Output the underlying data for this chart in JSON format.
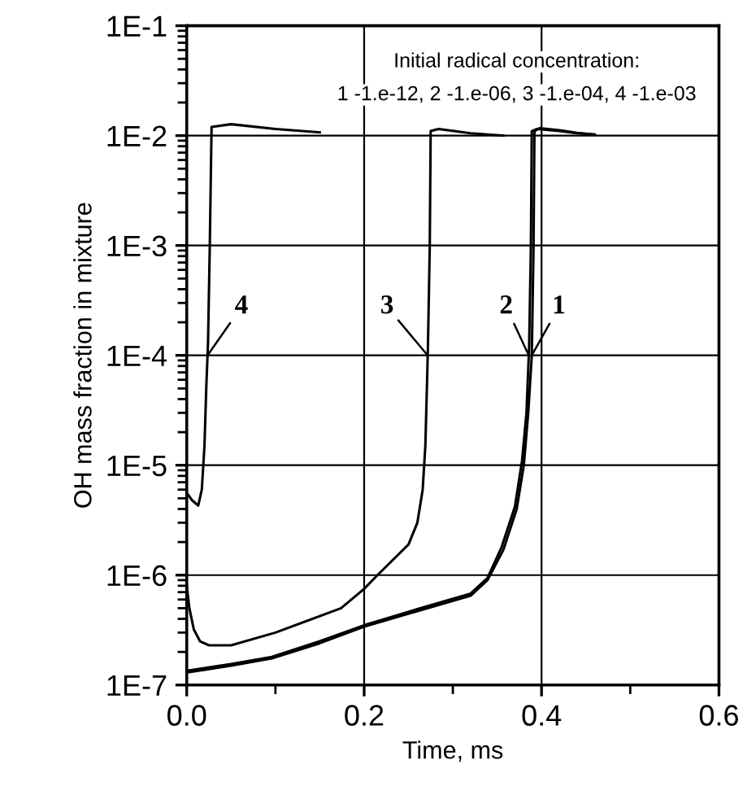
{
  "chart_data": {
    "type": "line",
    "xlabel": "Time, ms",
    "ylabel": "OH mass fraction in mixture",
    "annotations": [
      "Initial radical concentration:",
      "1 -1.e-12, 2 -1.e-06, 3 -1.e-04, 4 -1.e-03"
    ],
    "series": [
      {
        "name": "1",
        "color": "#000000",
        "x": [
          0,
          0.05,
          0.096,
          0.15,
          0.2,
          0.26,
          0.32,
          0.339,
          0.357,
          0.372,
          0.38,
          0.385,
          0.389,
          0.391,
          0.392,
          0.398,
          0.42,
          0.44,
          0.46
        ],
        "values": [
          1.3e-07,
          1.5e-07,
          1.75e-07,
          2.4e-07,
          3.4e-07,
          4.7e-07,
          6.5e-07,
          9e-07,
          1.7e-06,
          4e-06,
          1e-05,
          3e-05,
          0.0001,
          0.001,
          0.011,
          0.0117,
          0.0112,
          0.0106,
          0.0102
        ]
      },
      {
        "name": "2",
        "color": "#000000",
        "x": [
          0,
          0.05,
          0.096,
          0.15,
          0.2,
          0.26,
          0.32,
          0.339,
          0.355,
          0.37,
          0.378,
          0.383,
          0.386,
          0.388,
          0.389,
          0.395,
          0.42,
          0.44,
          0.46
        ],
        "values": [
          1.35e-07,
          1.55e-07,
          1.8e-07,
          2.5e-07,
          3.5e-07,
          4.9e-07,
          6.8e-07,
          9.4e-07,
          1.8e-06,
          4.2e-06,
          1.1e-05,
          3e-05,
          0.00012,
          0.001,
          0.011,
          0.0115,
          0.011,
          0.0105,
          0.0102
        ]
      },
      {
        "name": "3",
        "color": "#000000",
        "x": [
          0,
          0.003,
          0.008,
          0.015,
          0.025,
          0.05,
          0.1,
          0.174,
          0.2,
          0.215,
          0.25,
          0.26,
          0.266,
          0.269,
          0.271,
          0.272,
          0.274,
          0.275,
          0.284,
          0.32,
          0.357
        ],
        "values": [
          8e-07,
          5e-07,
          3.2e-07,
          2.5e-07,
          2.3e-07,
          2.3e-07,
          3e-07,
          5e-07,
          7.5e-07,
          1e-06,
          1.9e-06,
          3e-06,
          6e-06,
          1.5e-05,
          6e-05,
          0.00013,
          0.001,
          0.011,
          0.0115,
          0.0105,
          0.01
        ]
      },
      {
        "name": "4",
        "color": "#000000",
        "x": [
          0,
          0.006,
          0.013,
          0.017,
          0.02,
          0.022,
          0.024,
          0.026,
          0.028,
          0.05,
          0.1,
          0.15
        ],
        "values": [
          5.6e-06,
          4.8e-06,
          4.3e-06,
          6e-06,
          1.5e-05,
          5e-05,
          0.00013,
          0.001,
          0.012,
          0.0127,
          0.0115,
          0.0107
        ]
      }
    ],
    "log": "y",
    "xlim": [
      0,
      0.6
    ],
    "ylim": [
      1e-07,
      0.1
    ],
    "xticks": [
      {
        "value": 0,
        "label": "0.0"
      },
      {
        "value": 0.1,
        "label": null
      },
      {
        "value": 0.2,
        "label": "0.2"
      },
      {
        "value": 0.3,
        "label": null
      },
      {
        "value": 0.4,
        "label": "0.4"
      },
      {
        "value": 0.5,
        "label": null
      },
      {
        "value": 0.6,
        "label": "0.6"
      }
    ],
    "yticks": [
      {
        "value": 1e-07,
        "label": "1E-7"
      },
      {
        "value": 1e-06,
        "label": "1E-6"
      },
      {
        "value": 1e-05,
        "label": "1E-5"
      },
      {
        "value": 0.0001,
        "label": "1E-4"
      },
      {
        "value": 0.001,
        "label": "1E-3"
      },
      {
        "value": 0.01,
        "label": "1E-2"
      },
      {
        "value": 0.1,
        "label": "1E-1"
      }
    ],
    "grid": true,
    "legend": false,
    "marker": "none",
    "line_style": "solid"
  }
}
